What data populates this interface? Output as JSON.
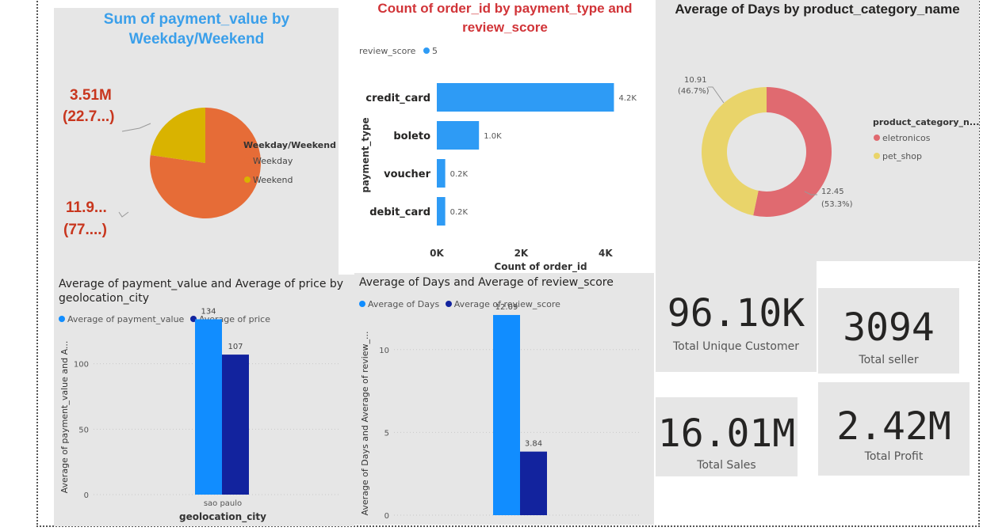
{
  "pie_card": {
    "title": "Sum of payment_value by Weekday/Weekend",
    "legend_title": "Weekday/Weekend",
    "label_weekend_val": "3.51M",
    "label_weekend_pct": "(22.7...)",
    "label_weekday_val": "11.9...",
    "label_weekday_pct": "(77....)"
  },
  "bar_card": {
    "title": "Count of order_id by payment_type and review_score",
    "legend_title": "review_score",
    "legend_item": "5",
    "ylabel": "payment_type",
    "xlabel": "Count of order_id",
    "ticks": [
      "0K",
      "2K",
      "4K"
    ]
  },
  "donut_card": {
    "title": "Average of Days by product_category_name",
    "legend_title": "product_category_n...",
    "label_pet_val": "10.91",
    "label_pet_pct": "(46.7%)",
    "label_ele_val": "12.45",
    "label_ele_pct": "(53.3%)"
  },
  "city_card": {
    "title": "Average of payment_value and Average of price by geolocation_city",
    "legend_1": "Average of payment_value",
    "legend_2": "Average of price",
    "ylabel": "Average of payment_value and A...",
    "xlabel": "geolocation_city",
    "category": "sao paulo",
    "ticks": [
      "0",
      "50",
      "100"
    ]
  },
  "days_card": {
    "title": "Average of Days and Average of review_score",
    "legend_1": "Average of Days",
    "legend_2": "Average of review_score",
    "ylabel": "Average of Days and Average of review_...",
    "ticks": [
      "0",
      "5",
      "10"
    ]
  },
  "kpis": {
    "unique_customer_value": "96.10K",
    "unique_customer_label": "Total Unique Customer",
    "seller_value": "3094",
    "seller_label": "Total seller",
    "sales_value": "16.01M",
    "sales_label": "Total Sales",
    "profit_value": "2.42M",
    "profit_label": "Total Profit"
  },
  "colors": {
    "weekday": "#E66C37",
    "weekend": "#D9B300",
    "bar_blue": "#2E9BF5",
    "series_light": "#118DFF",
    "series_dark": "#12239E",
    "eletronicos": "#E06A70",
    "pet_shop": "#E9D46A",
    "title_blue": "#3A9FEA",
    "title_red": "#D13438",
    "label_red": "#C8361E"
  },
  "chart_data": [
    {
      "type": "pie",
      "title": "Sum of payment_value by Weekday/Weekend",
      "legend_title": "Weekday/Weekend",
      "categories": [
        "Weekday",
        "Weekend"
      ],
      "values": [
        11.94,
        3.51
      ],
      "unit": "M",
      "legend": "right"
    },
    {
      "type": "bar",
      "orientation": "horizontal",
      "title": "Count of order_id by payment_type and review_score",
      "categories": [
        "credit_card",
        "boleto",
        "voucher",
        "debit_card"
      ],
      "series": [
        {
          "name": "5",
          "values": [
            4200,
            1000,
            200,
            200
          ]
        }
      ],
      "data_labels": [
        "4.2K",
        "1.0K",
        "0.2K",
        "0.2K"
      ],
      "xlabel": "Count of order_id",
      "ylabel": "payment_type",
      "xlim": [
        0,
        4500
      ],
      "legend": "top-left"
    },
    {
      "type": "pie",
      "subtype": "donut",
      "title": "Average of Days by product_category_name",
      "legend_title": "product_category_n...",
      "categories": [
        "eletronicos",
        "pet_shop"
      ],
      "values": [
        12.45,
        10.91
      ],
      "legend": "right"
    },
    {
      "type": "bar",
      "title": "Average of payment_value and Average of price by geolocation_city",
      "categories": [
        "sao paulo"
      ],
      "series": [
        {
          "name": "Average of payment_value",
          "values": [
            134
          ]
        },
        {
          "name": "Average of price",
          "values": [
            107
          ]
        }
      ],
      "xlabel": "geolocation_city",
      "ylabel": "Average of payment_value and A...",
      "ylim": [
        0,
        150
      ],
      "grid": true,
      "legend": "top-left"
    },
    {
      "type": "bar",
      "title": "Average of Days and Average of review_score",
      "categories": [
        ""
      ],
      "series": [
        {
          "name": "Average of Days",
          "values": [
            12.09
          ]
        },
        {
          "name": "Average of review_score",
          "values": [
            3.84
          ]
        }
      ],
      "ylabel": "Average of Days and Average of review_...",
      "ylim": [
        0,
        13
      ],
      "grid": true,
      "legend": "top-left"
    }
  ]
}
